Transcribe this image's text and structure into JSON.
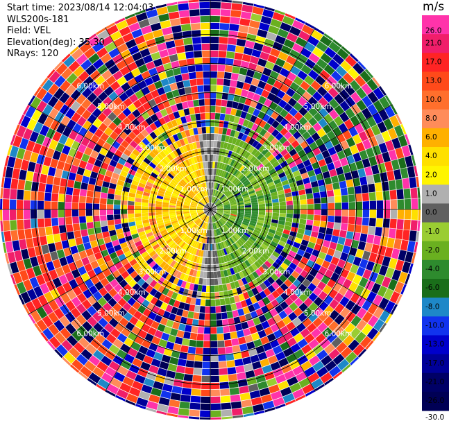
{
  "header": {
    "start_time": "Start time: 2023/08/14 12:04:03",
    "instrument": "WLS200s-181",
    "field": "Field: VEL",
    "elevation": "Elevation(deg): 35.30",
    "nrays": "NRays: 120"
  },
  "colorbar": {
    "title": "m/s",
    "ticks": [
      "26.0",
      "21.0",
      "17.0",
      "13.0",
      "10.0",
      "8.0",
      "6.0",
      "4.0",
      "2.0",
      "1.0",
      "0.0",
      "-1.0",
      "-2.0",
      "-4.0",
      "-6.0",
      "-8.0",
      "-10.0",
      "-13.0",
      "-17.0",
      "-21.0",
      "-26.0",
      "-30.0"
    ],
    "colors": [
      "#ff33aa",
      "#f01e6a",
      "#ff2424",
      "#ff4a1a",
      "#ff6f2c",
      "#ff8c5a",
      "#ffb000",
      "#ffe000",
      "#fff500",
      "#b0b0b0",
      "#606060",
      "#9acd32",
      "#6ab020",
      "#2e8b2e",
      "#1a6e1a",
      "#1e88c8",
      "#1133ee",
      "#0000cc",
      "#000099",
      "#000066",
      "#000055"
    ]
  },
  "chart_data": {
    "type": "heatmap",
    "subtype": "radar-ppi",
    "field": "VEL",
    "units": "m/s",
    "n_rays": 120,
    "elevation_deg": 35.3,
    "range_rings_km": [
      1.0,
      2.0,
      3.0,
      4.0,
      5.0,
      6.0
    ],
    "range_labels": [
      "1.00km",
      "2.00km",
      "3.00km",
      "4.00km",
      "5.00km",
      "6.00km"
    ],
    "color_scale": {
      "bounds": [
        -30,
        -26,
        -21,
        -17,
        -13,
        -10,
        -8,
        -6,
        -4,
        -2,
        -1,
        0,
        1,
        2,
        4,
        6,
        8,
        10,
        13,
        17,
        21,
        26
      ],
      "colors": [
        "#000055",
        "#000066",
        "#000099",
        "#0000cc",
        "#1133ee",
        "#1e88c8",
        "#1a6e1a",
        "#2e8b2e",
        "#6ab020",
        "#9acd32",
        "#606060",
        "#b0b0b0",
        "#fff500",
        "#ffe000",
        "#ffb000",
        "#ff8c5a",
        "#ff6f2c",
        "#ff4a1a",
        "#ff2424",
        "#f01e6a",
        "#ff33aa"
      ]
    },
    "description_pattern": "near range (< ~2.6 km): west half positive 0-6 m/s (yellow/orange), east half negative -1 to -6 m/s (green), grey zero-velocity band N-S; far range noisy multicolor",
    "grid": true
  }
}
